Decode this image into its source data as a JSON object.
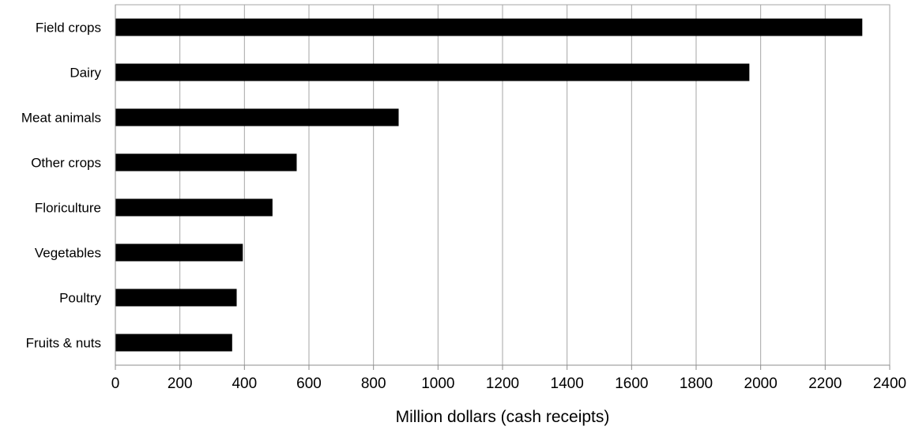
{
  "chart_data": {
    "type": "bar",
    "orientation": "horizontal",
    "categories": [
      "Field crops",
      "Dairy",
      "Meat animals",
      "Other crops",
      "Floriculture",
      "Vegetables",
      "Poultry",
      "Fruits & nuts"
    ],
    "values": [
      2315,
      1965,
      878,
      562,
      487,
      395,
      376,
      362
    ],
    "title": "",
    "xlabel": "Million dollars (cash receipts)",
    "ylabel": "",
    "xlim": [
      0,
      2400
    ],
    "xticks": [
      0,
      200,
      400,
      600,
      800,
      1000,
      1200,
      1400,
      1600,
      1800,
      2000,
      2200,
      2400
    ],
    "grid": true,
    "legend": "none",
    "bar_color": "#000000",
    "grid_color": "#a6a6a6"
  }
}
